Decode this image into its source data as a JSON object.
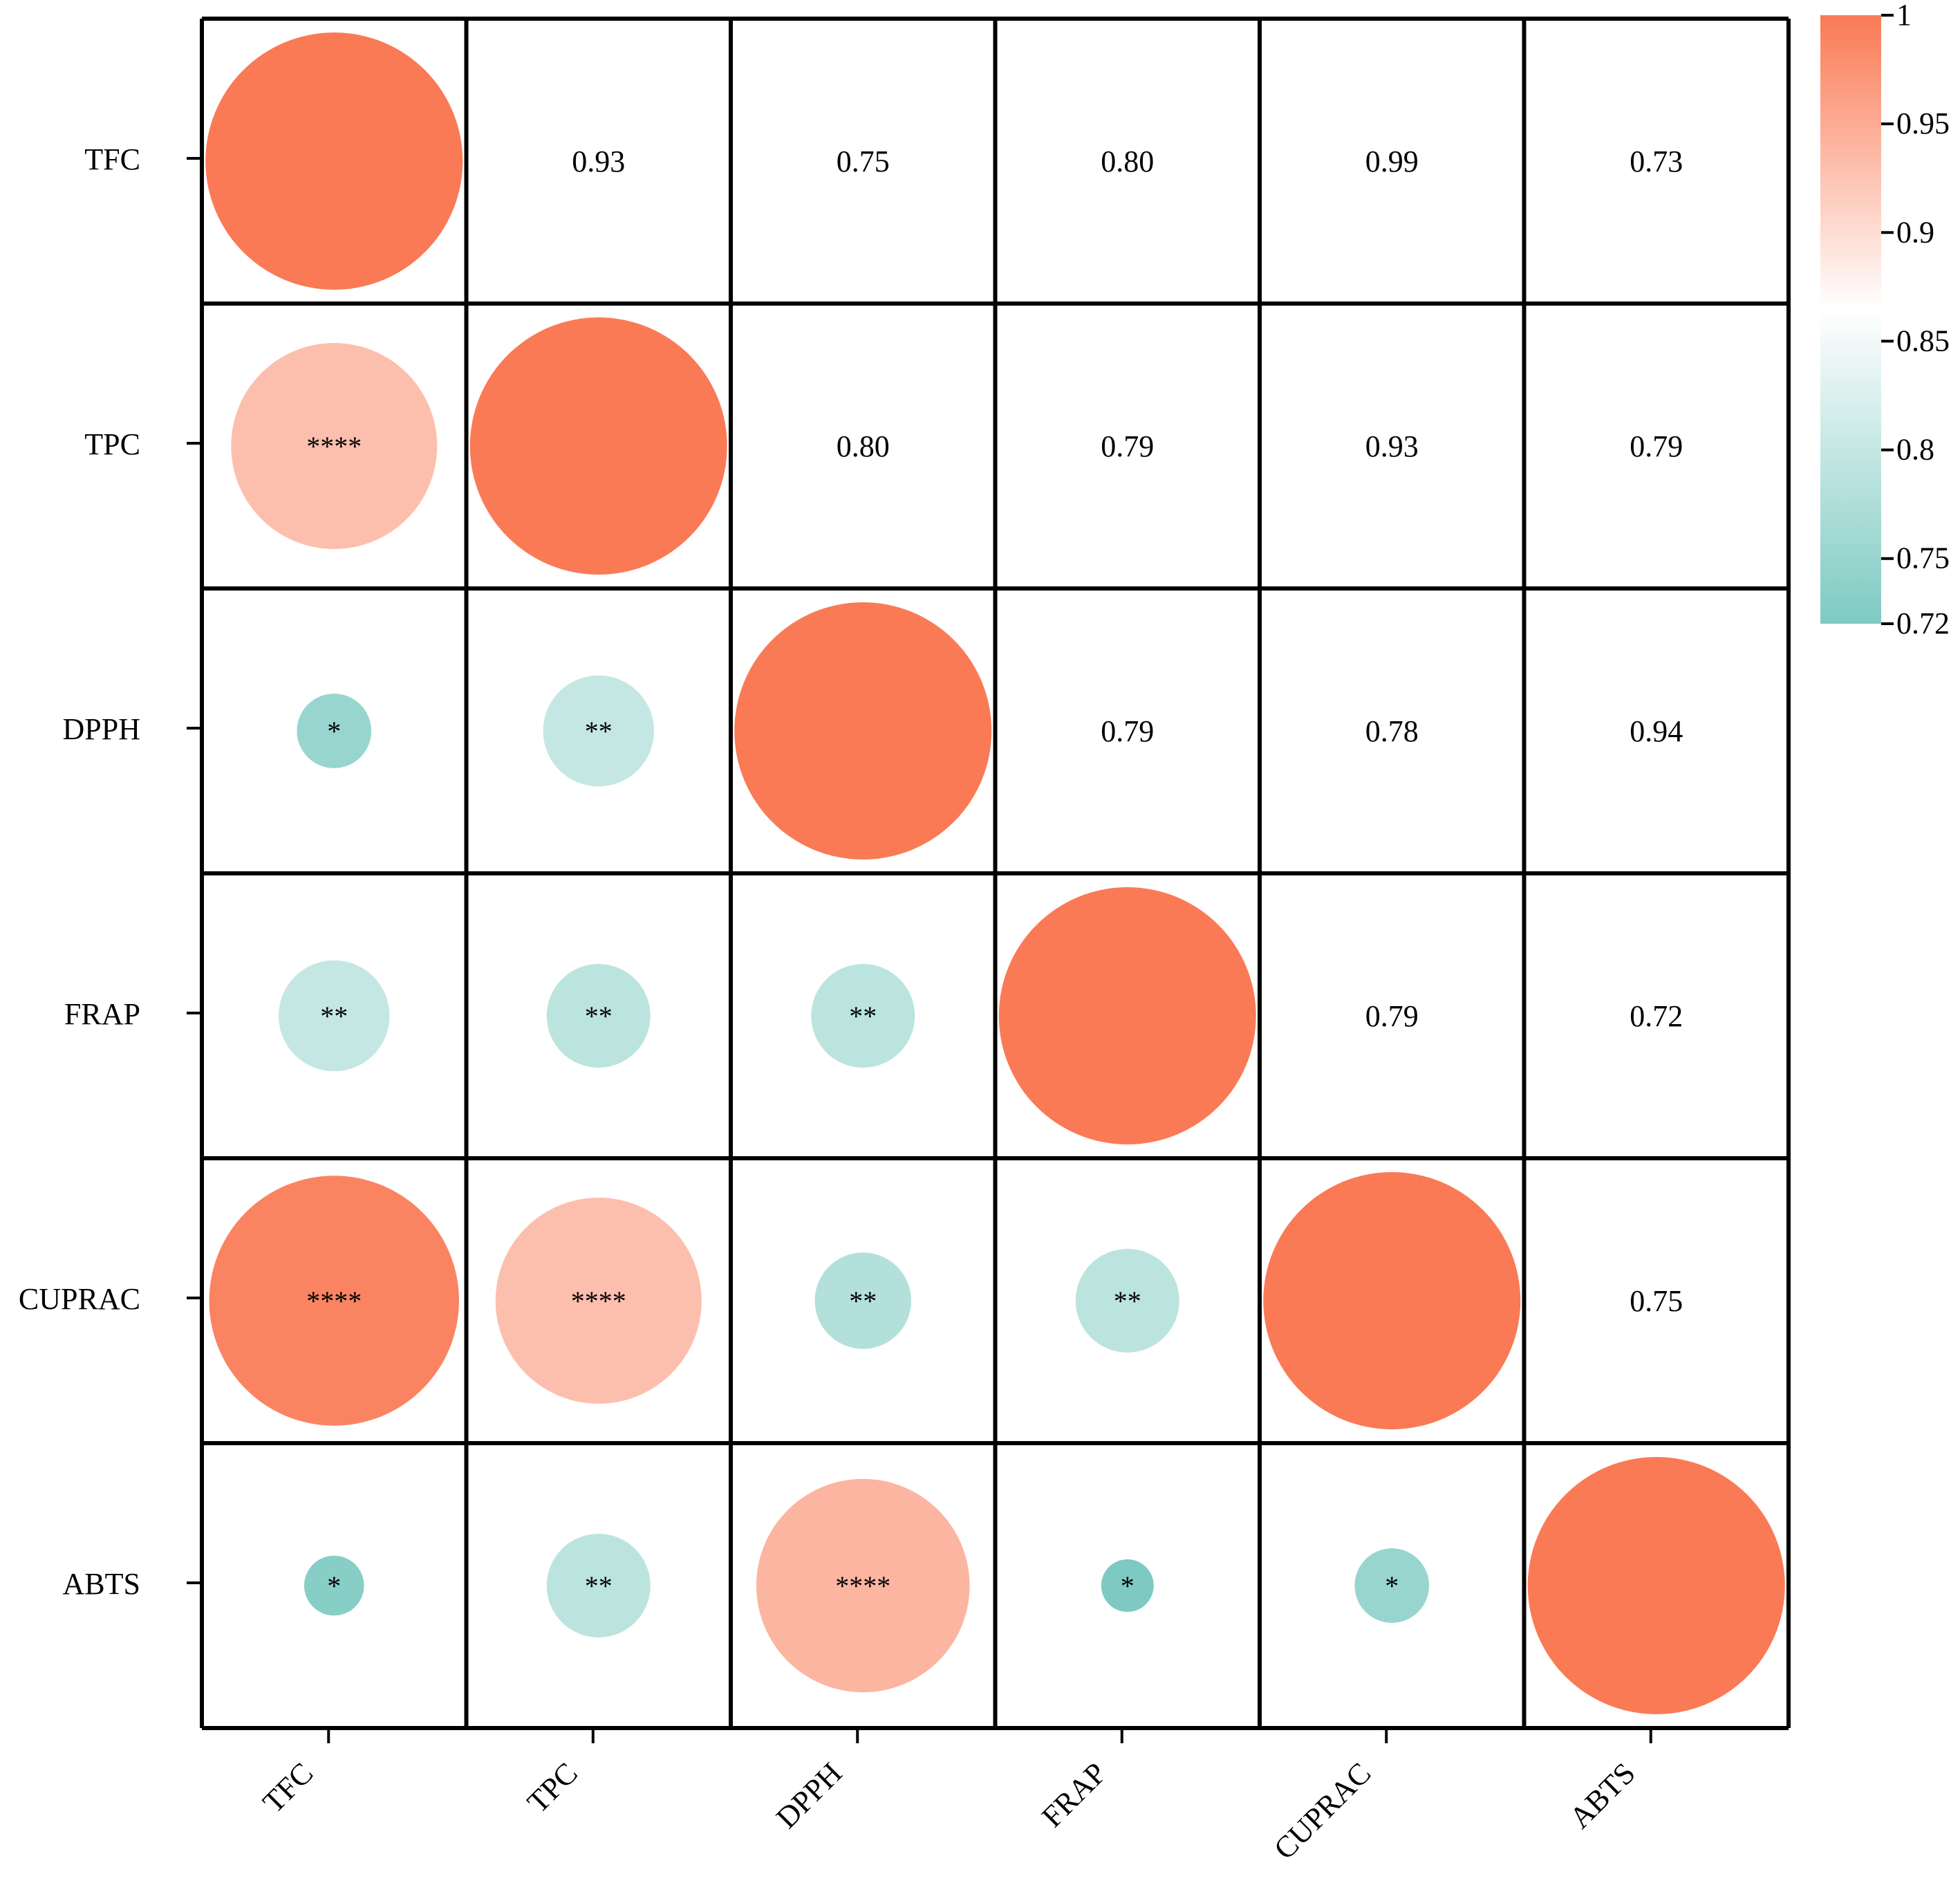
{
  "chart_data": {
    "type": "heatmap",
    "subtype": "correlation-circle-matrix",
    "variables": [
      "TFC",
      "TPC",
      "DPPH",
      "FRAP",
      "CUPRAC",
      "ABTS"
    ],
    "matrix": [
      [
        1.0,
        0.93,
        0.75,
        0.8,
        0.99,
        0.73
      ],
      [
        0.93,
        1.0,
        0.8,
        0.79,
        0.93,
        0.79
      ],
      [
        0.75,
        0.8,
        1.0,
        0.79,
        0.78,
        0.94
      ],
      [
        0.8,
        0.79,
        0.79,
        1.0,
        0.79,
        0.72
      ],
      [
        0.99,
        0.93,
        0.78,
        0.79,
        1.0,
        0.75
      ],
      [
        0.73,
        0.79,
        0.94,
        0.72,
        0.75,
        1.0
      ]
    ],
    "upper_labels": [
      [
        "",
        "0.93",
        "0.75",
        "0.80",
        "0.99",
        "0.73"
      ],
      [
        "",
        "",
        "0.80",
        "0.79",
        "0.93",
        "0.79"
      ],
      [
        "",
        "",
        "",
        "0.79",
        "0.78",
        "0.94"
      ],
      [
        "",
        "",
        "",
        "",
        "0.79",
        "0.72"
      ],
      [
        "",
        "",
        "",
        "",
        "",
        "0.75"
      ],
      [
        "",
        "",
        "",
        "",
        "",
        ""
      ]
    ],
    "significance": [
      [
        "",
        "",
        "",
        "",
        "",
        ""
      ],
      [
        "****",
        "",
        "",
        "",
        "",
        ""
      ],
      [
        "*",
        "**",
        "",
        "",
        "",
        ""
      ],
      [
        "**",
        "**",
        "**",
        "",
        "",
        ""
      ],
      [
        "****",
        "****",
        "**",
        "**",
        "",
        ""
      ],
      [
        "*",
        "**",
        "****",
        "*",
        "*",
        ""
      ]
    ],
    "colorbar": {
      "min": 0.72,
      "max": 1,
      "ticks": [
        "1",
        "0.95",
        "0.9",
        "0.85",
        "0.8",
        "0.75",
        "0.72"
      ],
      "colors": {
        "low": "#7ecac2",
        "mid": "#ffffff",
        "high": "#fa7a55"
      },
      "mid_value": 0.865
    }
  }
}
